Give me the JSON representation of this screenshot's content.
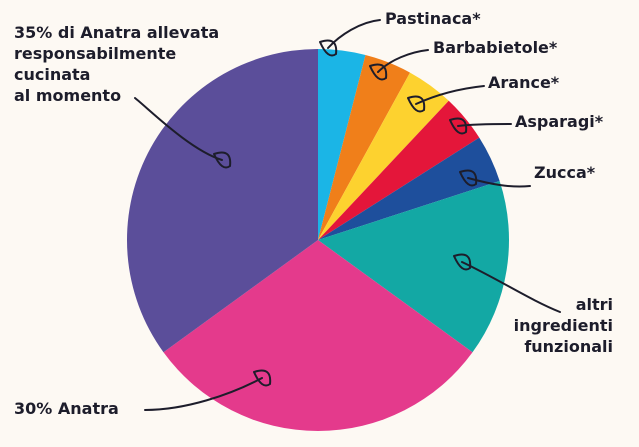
{
  "chart_data": {
    "type": "pie",
    "categories": [
      "Pastinaca*",
      "Barbabietole*",
      "Arance*",
      "Asparagi*",
      "Zucca*",
      "altri\ningredienti\nfunzionali",
      "30% Anatra",
      "35% di Anatra allevata\nresponsabilmente\ncucinata\nal momento"
    ],
    "values": [
      4,
      4,
      4,
      4,
      4,
      15,
      30,
      35
    ],
    "colors": [
      "#1bb5e6",
      "#f07f1a",
      "#fdd22f",
      "#e4163a",
      "#1e4f9c",
      "#13a8a4",
      "#e43a8c",
      "#5b4e9a"
    ]
  }
}
